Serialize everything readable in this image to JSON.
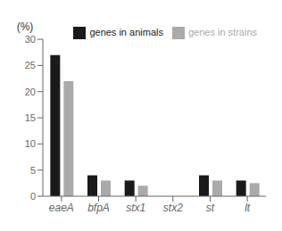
{
  "chart_data": {
    "type": "bar",
    "ylabel": "(%)",
    "categories": [
      "eaeA",
      "bfpA",
      "stx1",
      "stx2",
      "st",
      "lt"
    ],
    "series": [
      {
        "name": "genes in animals",
        "color": "#1a1a1a",
        "values": [
          27,
          4,
          3,
          0,
          4,
          3
        ]
      },
      {
        "name": "genes in strains",
        "color": "#aaaaaa",
        "values": [
          22,
          3,
          2,
          0,
          3,
          2.5
        ]
      }
    ],
    "ylim": [
      0,
      30
    ],
    "yticks": [
      0,
      5,
      10,
      15,
      20,
      25,
      30
    ],
    "grid": false,
    "legend": "upper right"
  }
}
